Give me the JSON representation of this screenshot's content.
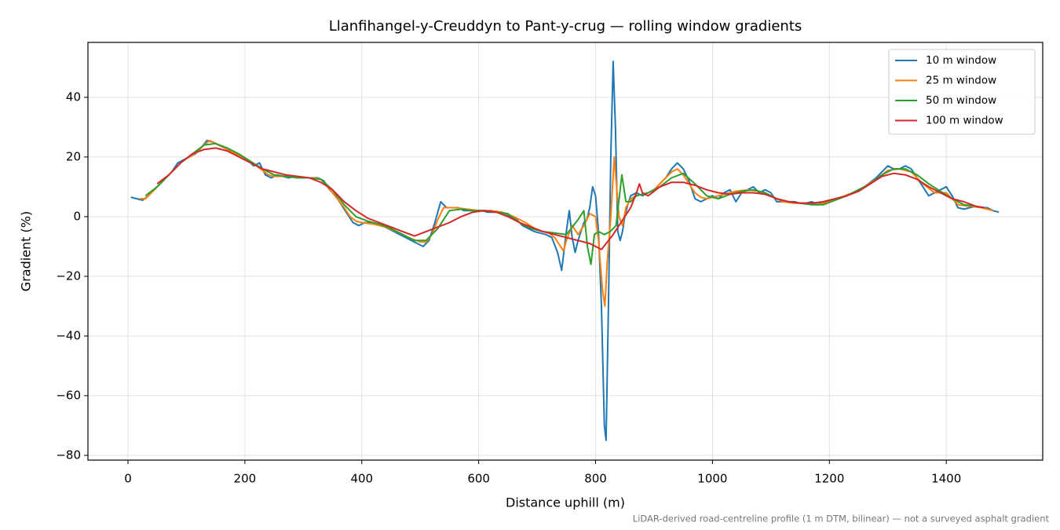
{
  "chart_data": {
    "type": "line",
    "title": "Llanfihangel-y-Creuddyn to Pant-y-crug — rolling window gradients",
    "xlabel": "Distance uphill (m)",
    "ylabel": "Gradient (%)",
    "annotation": "LiDAR-derived road-centreline profile (1 m DTM, bilinear) — not a surveyed asphalt gradient",
    "xlim": [
      -68.5,
      1565
    ],
    "ylim": [
      -81.6,
      58.4
    ],
    "xticks": [
      0,
      200,
      400,
      600,
      800,
      1000,
      1200,
      1400
    ],
    "yticks": [
      {
        "value": -80,
        "label": "−80"
      },
      {
        "value": -60,
        "label": "−60"
      },
      {
        "value": -40,
        "label": "−40"
      },
      {
        "value": -20,
        "label": "−20"
      },
      0,
      20,
      40
    ],
    "grid": true,
    "legend": "upper right",
    "series": [
      {
        "name": "10 m window",
        "color": "#1f77b4",
        "x": [
          5,
          15,
          25,
          35,
          45,
          55,
          65,
          75,
          85,
          95,
          105,
          115,
          125,
          135,
          145,
          155,
          165,
          175,
          185,
          195,
          205,
          215,
          225,
          235,
          245,
          255,
          265,
          275,
          285,
          295,
          305,
          315,
          325,
          335,
          345,
          355,
          365,
          375,
          385,
          395,
          405,
          415,
          425,
          435,
          445,
          455,
          465,
          475,
          485,
          495,
          505,
          515,
          525,
          535,
          545,
          555,
          565,
          575,
          585,
          595,
          605,
          615,
          625,
          635,
          645,
          655,
          665,
          675,
          685,
          695,
          705,
          715,
          725,
          735,
          742,
          750,
          755,
          760,
          765,
          770,
          775,
          780,
          785,
          790,
          795,
          800,
          805,
          810,
          815,
          818,
          822,
          826,
          830,
          834,
          838,
          842,
          846,
          850,
          855,
          860,
          870,
          880,
          890,
          900,
          910,
          920,
          930,
          940,
          950,
          960,
          970,
          980,
          990,
          1000,
          1010,
          1020,
          1030,
          1040,
          1050,
          1060,
          1070,
          1080,
          1090,
          1100,
          1110,
          1120,
          1130,
          1140,
          1150,
          1160,
          1170,
          1180,
          1190,
          1200,
          1220,
          1240,
          1260,
          1280,
          1300,
          1310,
          1320,
          1330,
          1340,
          1350,
          1360,
          1370,
          1380,
          1390,
          1400,
          1410,
          1420,
          1430,
          1440,
          1450,
          1460,
          1470,
          1480,
          1490
        ],
        "values": [
          6.5,
          6,
          5.5,
          7,
          9,
          11,
          13,
          15,
          18,
          19,
          20,
          21,
          23,
          25.5,
          25,
          24,
          23,
          22,
          21,
          20,
          19,
          17,
          18,
          14,
          13,
          14,
          13.5,
          13,
          13.5,
          13,
          13,
          13,
          13,
          12,
          9,
          7,
          4,
          1,
          -2,
          -3,
          -2,
          -2,
          -2.5,
          -3,
          -4,
          -5,
          -6,
          -7,
          -8,
          -9,
          -10,
          -8,
          -2,
          5,
          3,
          3,
          3,
          2,
          2,
          2,
          2,
          1.5,
          1.5,
          1.5,
          1,
          0,
          -1,
          -3,
          -4,
          -5,
          -5.5,
          -6,
          -7,
          -12,
          -18,
          -5,
          2,
          -7,
          -12,
          -8,
          -5,
          -2,
          -1,
          3,
          10,
          7,
          -5,
          -30,
          -70,
          -75,
          -30,
          20,
          52,
          30,
          -5,
          -8,
          -5,
          0,
          4,
          7,
          8,
          7,
          8,
          9,
          11,
          13,
          16,
          18,
          16,
          12,
          6,
          5,
          6,
          7,
          6,
          8,
          9,
          5,
          8,
          9,
          10,
          8,
          9,
          8,
          5,
          5,
          5,
          5,
          4.5,
          4.5,
          5,
          4,
          5,
          5.5,
          6.5,
          8,
          10,
          13,
          17,
          16,
          16,
          17,
          16,
          13,
          10,
          7,
          8,
          9,
          10,
          7,
          3,
          2.5,
          3,
          3.5,
          3,
          3,
          2,
          1.5
        ]
      },
      {
        "name": "25 m window",
        "color": "#ff7f0e",
        "x": [
          20,
          30,
          40,
          50,
          60,
          70,
          80,
          90,
          100,
          110,
          120,
          130,
          140,
          150,
          160,
          170,
          180,
          190,
          200,
          210,
          220,
          230,
          240,
          250,
          260,
          270,
          280,
          290,
          300,
          310,
          320,
          330,
          340,
          350,
          360,
          370,
          380,
          390,
          400,
          420,
          440,
          460,
          480,
          500,
          510,
          520,
          530,
          540,
          550,
          560,
          580,
          600,
          620,
          640,
          660,
          680,
          700,
          720,
          730,
          740,
          745,
          750,
          760,
          770,
          780,
          790,
          800,
          805,
          812,
          816,
          820,
          826,
          832,
          836,
          840,
          846,
          852,
          860,
          870,
          880,
          890,
          900,
          910,
          920,
          930,
          940,
          950,
          960,
          970,
          980,
          990,
          1000,
          1020,
          1040,
          1060,
          1080,
          1100,
          1120,
          1140,
          1160,
          1180,
          1200,
          1220,
          1240,
          1260,
          1280,
          1300,
          1320,
          1340,
          1360,
          1380,
          1400,
          1420,
          1440,
          1460,
          1480
        ],
        "values": [
          6,
          6,
          8,
          10,
          12,
          14,
          16,
          18,
          19.5,
          20.5,
          22,
          24,
          25.5,
          24.5,
          23.5,
          22.5,
          21.5,
          20.5,
          19.5,
          18,
          17,
          15.5,
          14,
          13.5,
          13.5,
          13.5,
          13.5,
          13,
          13,
          13,
          13,
          12.5,
          10.5,
          8,
          5.5,
          3,
          0,
          -1.5,
          -2,
          -2.5,
          -3.5,
          -5,
          -7,
          -8.5,
          -8.5,
          -6,
          -1,
          3,
          3,
          3,
          2.5,
          2,
          2,
          1.5,
          0,
          -2,
          -4.5,
          -5.5,
          -7,
          -10,
          -11.5,
          -8,
          -3,
          -6,
          -3,
          1,
          0,
          -8,
          -25,
          -30,
          -15,
          0,
          20,
          10,
          0,
          -3,
          3,
          6,
          7,
          7.5,
          8,
          9,
          11,
          13,
          15,
          16,
          14,
          11,
          8,
          6.5,
          6,
          6.5,
          7.5,
          8.5,
          9,
          8.5,
          7,
          5,
          4.5,
          4.5,
          4,
          5,
          6.5,
          8,
          10,
          12.5,
          15.5,
          16,
          15,
          11,
          8,
          8,
          4,
          3.5,
          3,
          2
        ]
      },
      {
        "name": "50 m window",
        "color": "#2ca02c",
        "x": [
          30,
          50,
          70,
          90,
          110,
          130,
          150,
          170,
          190,
          210,
          230,
          250,
          270,
          290,
          310,
          330,
          350,
          370,
          390,
          410,
          430,
          450,
          470,
          490,
          510,
          530,
          550,
          570,
          590,
          610,
          630,
          650,
          670,
          690,
          710,
          730,
          750,
          770,
          780,
          786,
          792,
          798,
          805,
          815,
          825,
          835,
          845,
          852,
          860,
          870,
          890,
          910,
          930,
          950,
          970,
          990,
          1010,
          1030,
          1050,
          1070,
          1090,
          1110,
          1130,
          1150,
          1170,
          1190,
          1210,
          1230,
          1250,
          1270,
          1290,
          1310,
          1330,
          1350,
          1370,
          1390,
          1410,
          1430,
          1450,
          1465
        ],
        "values": [
          7,
          10,
          14,
          18,
          21,
          24,
          24.5,
          23,
          21,
          18.5,
          16,
          14,
          13.5,
          13,
          13,
          12.5,
          9,
          4,
          0,
          -1.5,
          -2.5,
          -4,
          -6,
          -8,
          -8,
          -4,
          2,
          2.5,
          2,
          2,
          1.5,
          1,
          -2,
          -4,
          -5,
          -5.5,
          -6,
          -1,
          2,
          -10,
          -16,
          -6,
          -5,
          -6,
          -5,
          -3,
          14,
          5,
          5,
          7,
          8,
          10,
          13,
          14.5,
          11,
          7,
          6,
          7.5,
          8.5,
          9,
          8,
          6,
          5,
          4.5,
          4,
          4,
          5.5,
          7,
          9,
          11,
          14,
          16,
          16,
          14,
          11,
          8.5,
          6,
          4,
          3.5,
          3
        ]
      },
      {
        "name": "100 m window",
        "color": "#d62728",
        "x": [
          50,
          70,
          90,
          110,
          130,
          150,
          170,
          190,
          210,
          230,
          250,
          270,
          290,
          310,
          330,
          350,
          370,
          390,
          410,
          430,
          450,
          470,
          490,
          510,
          530,
          550,
          570,
          590,
          610,
          630,
          650,
          670,
          690,
          710,
          730,
          750,
          770,
          790,
          810,
          830,
          850,
          860,
          870,
          875,
          880,
          890,
          910,
          930,
          950,
          970,
          990,
          1010,
          1030,
          1050,
          1070,
          1090,
          1110,
          1130,
          1150,
          1170,
          1190,
          1210,
          1230,
          1250,
          1270,
          1290,
          1310,
          1330,
          1350,
          1370,
          1390,
          1410,
          1430,
          1450,
          1465
        ],
        "values": [
          11,
          14,
          18,
          21,
          22.5,
          23,
          22,
          20,
          18,
          16,
          15,
          14,
          13.5,
          13,
          11.5,
          9,
          5,
          2,
          -0.5,
          -2,
          -3.5,
          -5,
          -6.5,
          -5,
          -3.5,
          -2,
          0,
          1.5,
          2,
          1.5,
          0,
          -2,
          -3.5,
          -5,
          -6,
          -7,
          -8,
          -9,
          -11,
          -6,
          0,
          3,
          8,
          11,
          8,
          7,
          10,
          11.5,
          11.5,
          10.5,
          9,
          8,
          7.5,
          8,
          8,
          7.5,
          6,
          5,
          4.5,
          4.5,
          5,
          6,
          7,
          8.5,
          11,
          13.5,
          14.5,
          14,
          12.5,
          10,
          8,
          6,
          5,
          3.5,
          3
        ]
      }
    ]
  }
}
